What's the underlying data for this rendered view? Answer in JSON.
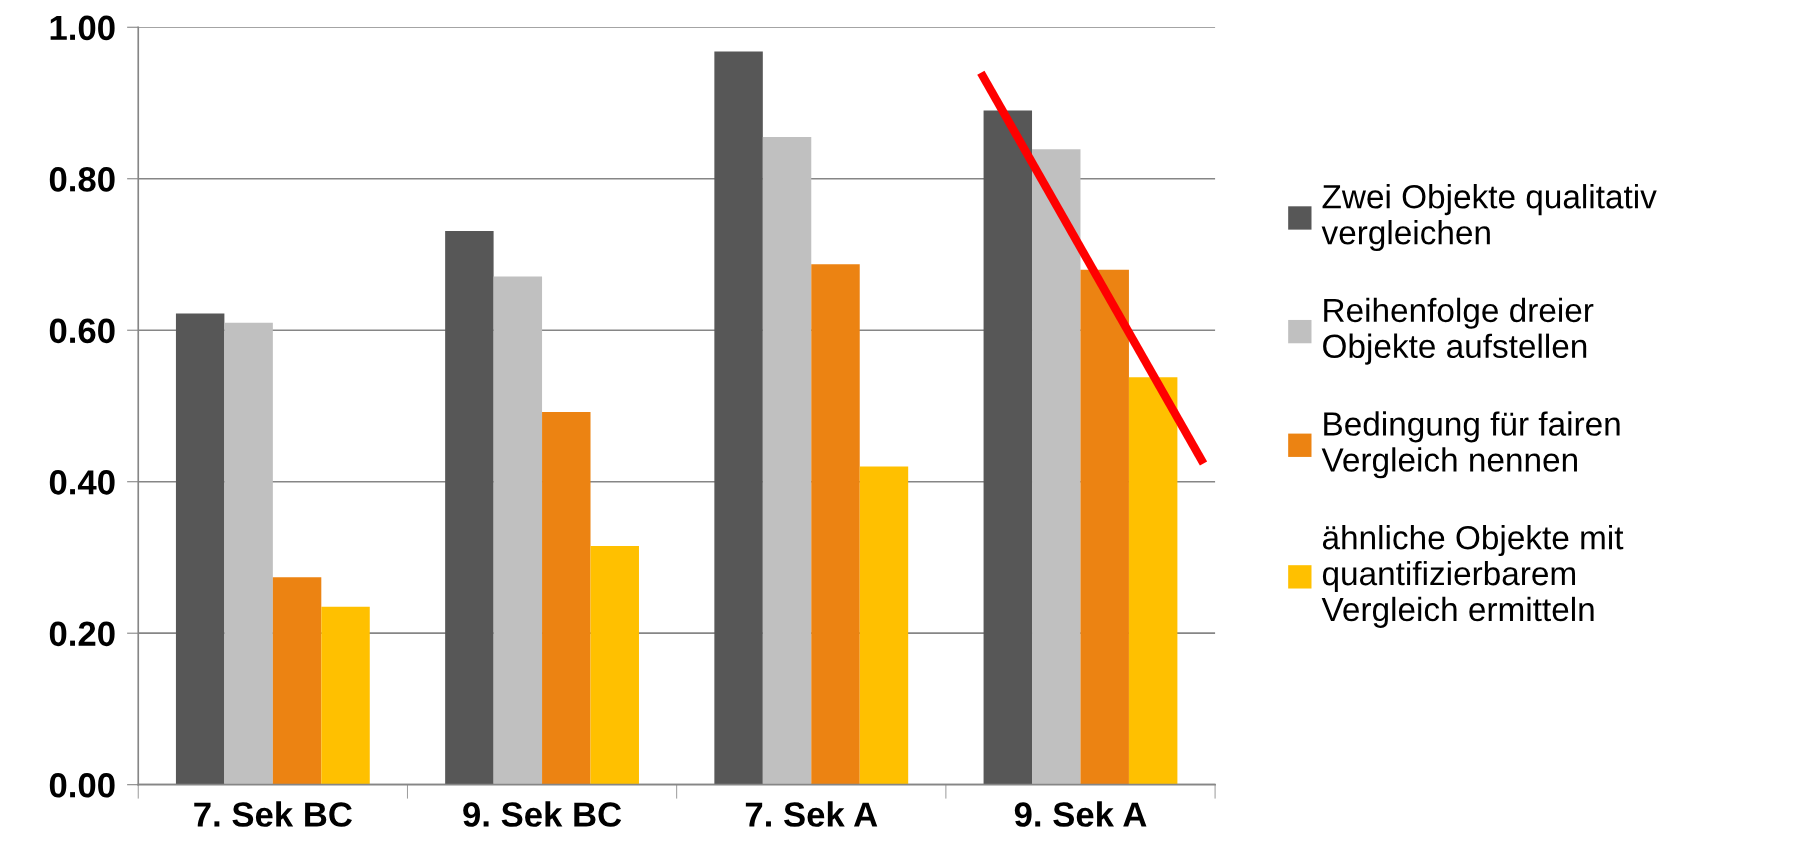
{
  "chart_data": {
    "type": "bar",
    "categories": [
      "7. Sek BC",
      "9. Sek BC",
      "7. Sek A",
      "9. Sek A"
    ],
    "series": [
      {
        "name": "Zwei Objekte qualitativ\nvergleichen",
        "color": "#575757",
        "values": [
          0.622,
          0.731,
          0.968,
          0.89
        ]
      },
      {
        "name": "Reihenfolge dreier\nObjekte aufstellen",
        "color": "#c0c0c0",
        "values": [
          0.61,
          0.671,
          0.855,
          0.839
        ]
      },
      {
        "name": "Bedingung für fairen\nVergleich nennen",
        "color": "#ec8312",
        "values": [
          0.274,
          0.492,
          0.687,
          0.68
        ]
      },
      {
        "name": "ähnliche Objekte mit\nquantifizierbarem\nVergleich ermitteln",
        "color": "#ffc000",
        "values": [
          0.235,
          0.315,
          0.42,
          0.538
        ]
      }
    ],
    "ylim": [
      0,
      1
    ],
    "yticks": [
      {
        "value": 0,
        "label": "0.00"
      },
      {
        "value": 0.2,
        "label": "0.20"
      },
      {
        "value": 0.4,
        "label": "0.40"
      },
      {
        "value": 0.6,
        "label": "0.60"
      },
      {
        "value": 0.8,
        "label": "0.80"
      },
      {
        "value": 1,
        "label": "1.00"
      }
    ],
    "grid": "y",
    "legend": "right"
  }
}
